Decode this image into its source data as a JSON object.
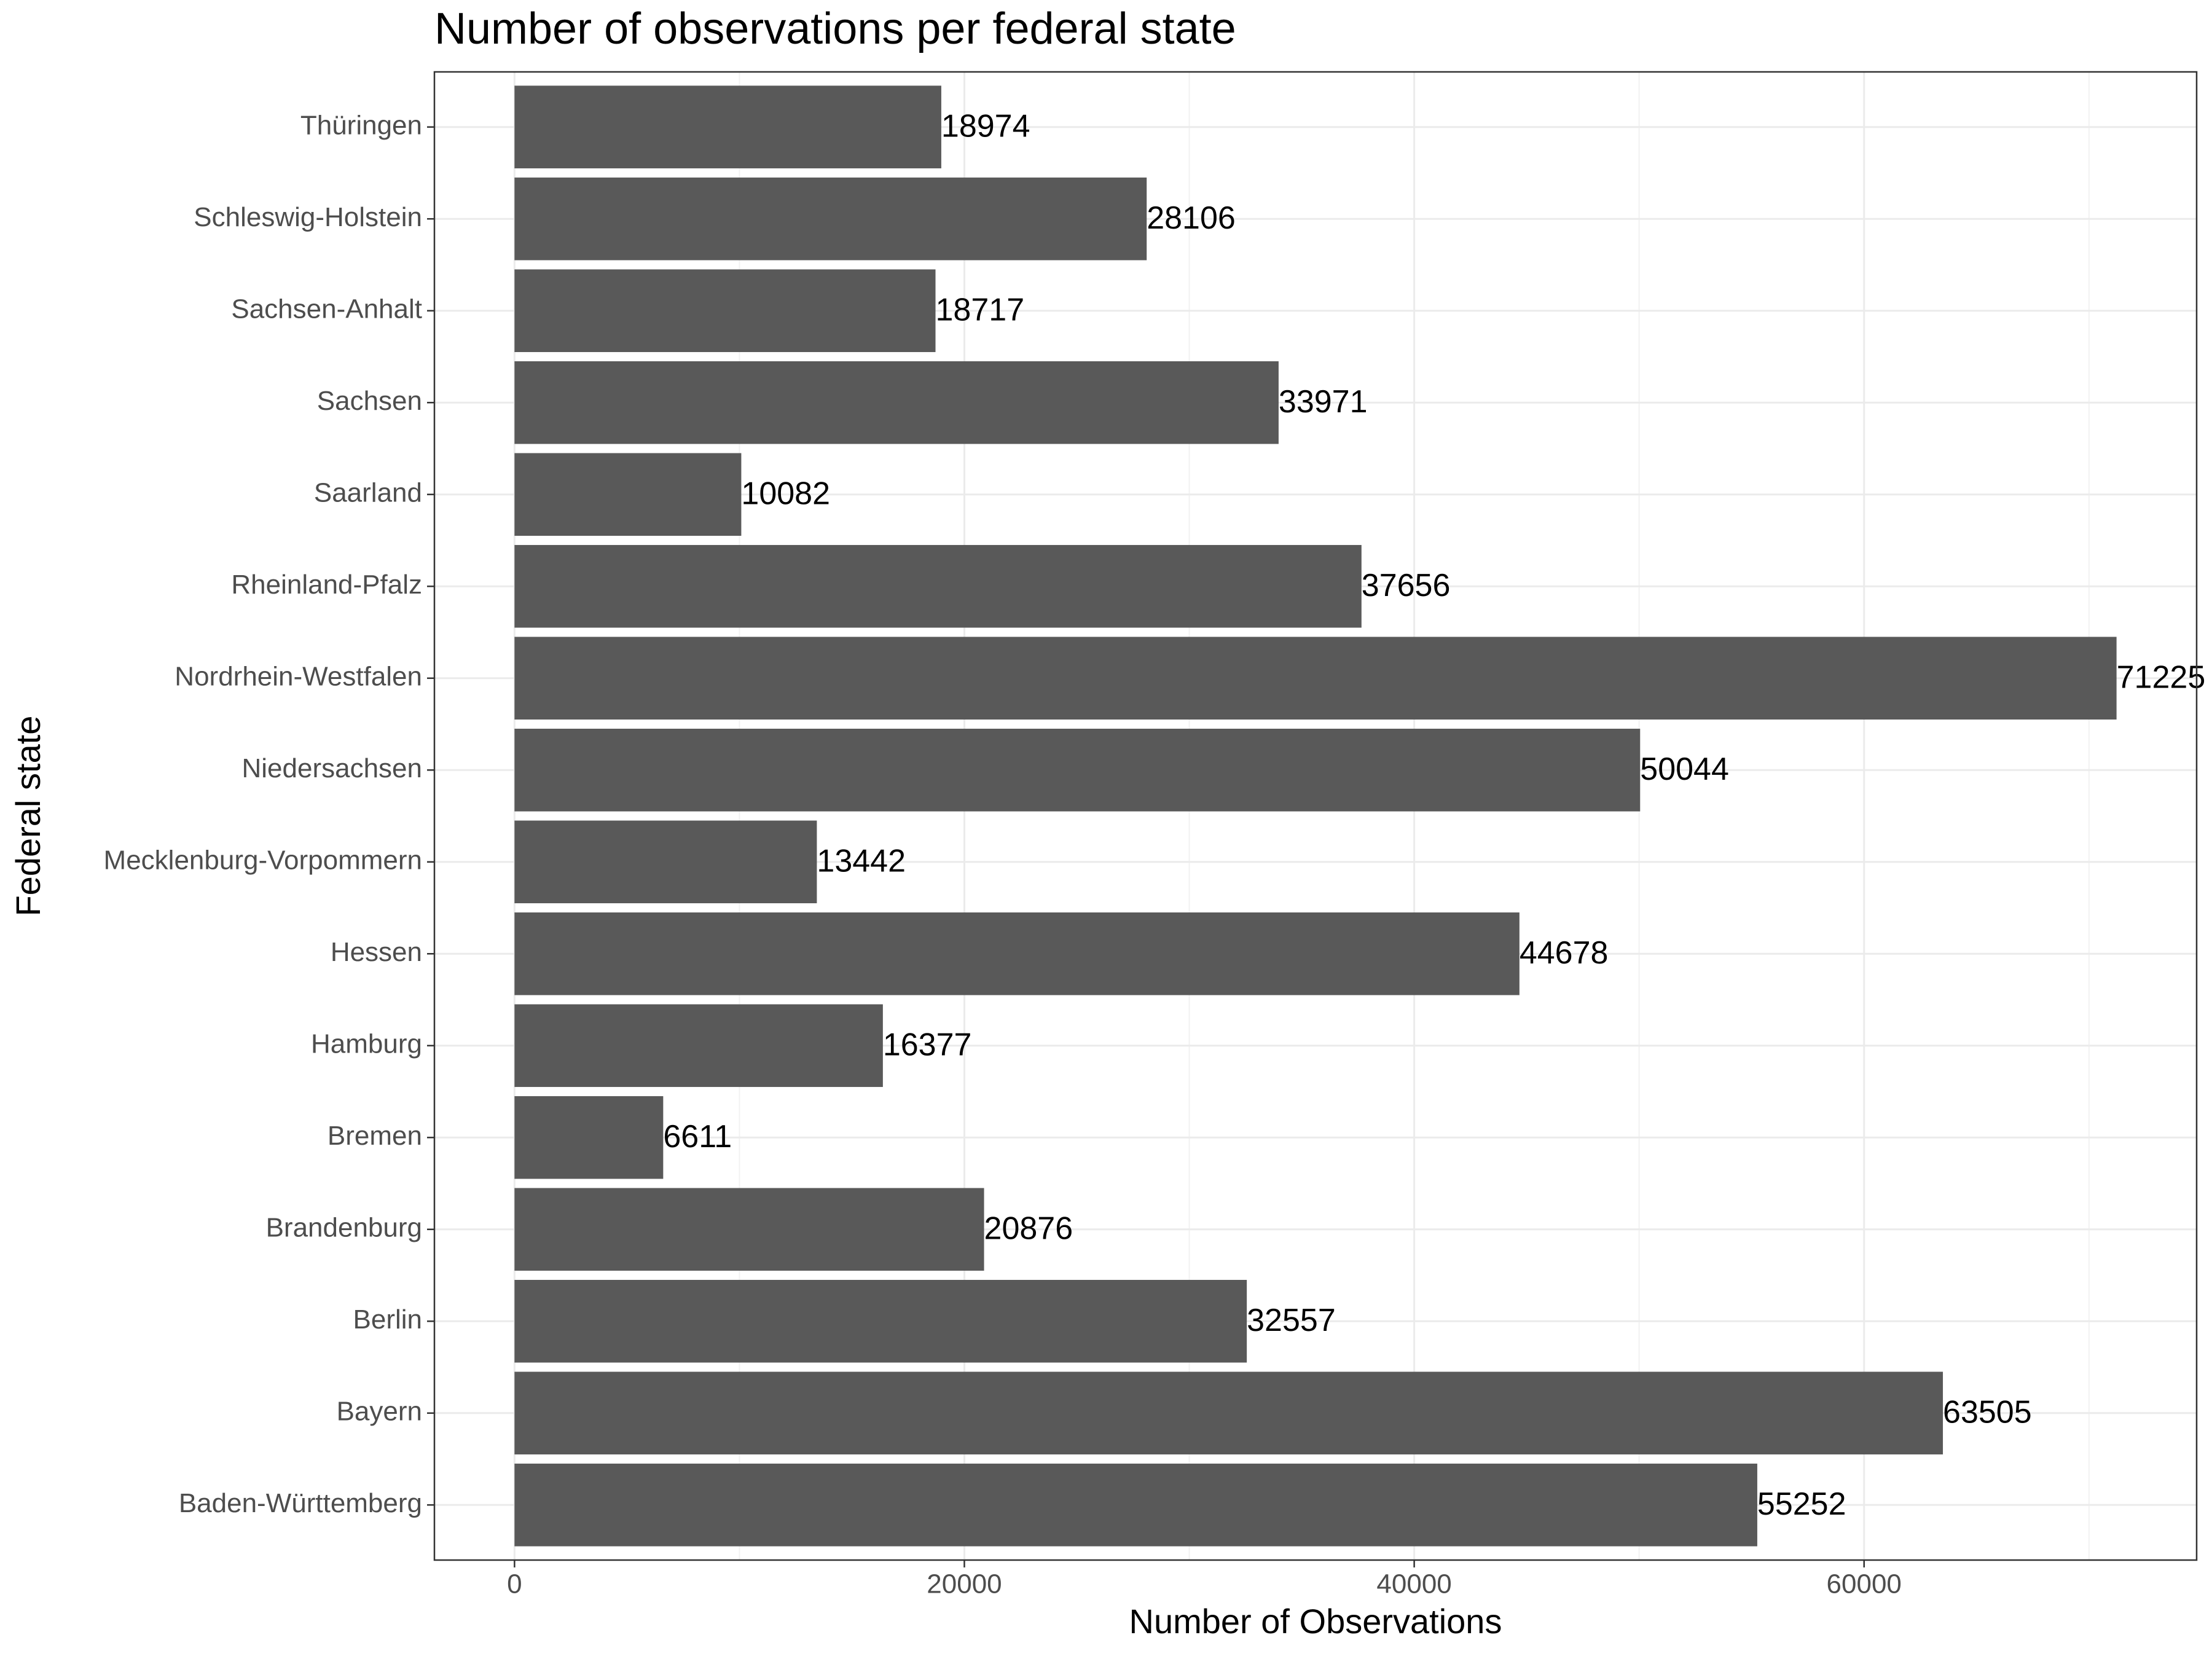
{
  "chart_data": {
    "type": "hbar",
    "title": "Number of observations per federal state",
    "x_label": "Number of Observations",
    "y_label": "Federal state",
    "categories": [
      "Baden-Württemberg",
      "Bayern",
      "Berlin",
      "Brandenburg",
      "Bremen",
      "Hamburg",
      "Hessen",
      "Mecklenburg-Vorpommern",
      "Niedersachsen",
      "Nordrhein-Westfalen",
      "Rheinland-Pfalz",
      "Saarland",
      "Sachsen",
      "Sachsen-Anhalt",
      "Schleswig-Holstein",
      "Thüringen"
    ],
    "values": [
      55252,
      63505,
      32557,
      20876,
      6611,
      16377,
      44678,
      13442,
      50044,
      71225,
      37656,
      10082,
      33971,
      18717,
      28106,
      18974
    ],
    "color": "#595959",
    "xlim": [
      -3561,
      74786
    ],
    "xticks": [
      0,
      20000,
      40000,
      60000
    ],
    "minor_xticks": [
      10000,
      30000,
      50000,
      70000
    ],
    "grid": true
  }
}
